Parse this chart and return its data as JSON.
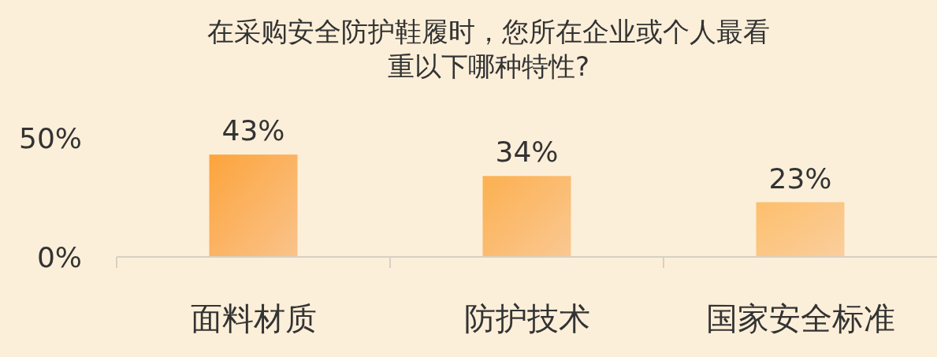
{
  "chart_data": {
    "type": "bar",
    "title": "在采购安全防护鞋履时，您所在企业或个人最看重以下哪种特性?",
    "categories": [
      "面料材质",
      "防护技术",
      "国家安全标准"
    ],
    "values": [
      43,
      34,
      23
    ],
    "colors": [
      "#fca43c",
      "#fcb050",
      "#fdbf6c"
    ],
    "value_labels": [
      "43%",
      "34%",
      "23%"
    ],
    "ylim": [
      0,
      50
    ],
    "yticks": [
      {
        "value": 0,
        "label": "0%"
      },
      {
        "value": 50,
        "label": "50%"
      }
    ],
    "grid": false
  }
}
